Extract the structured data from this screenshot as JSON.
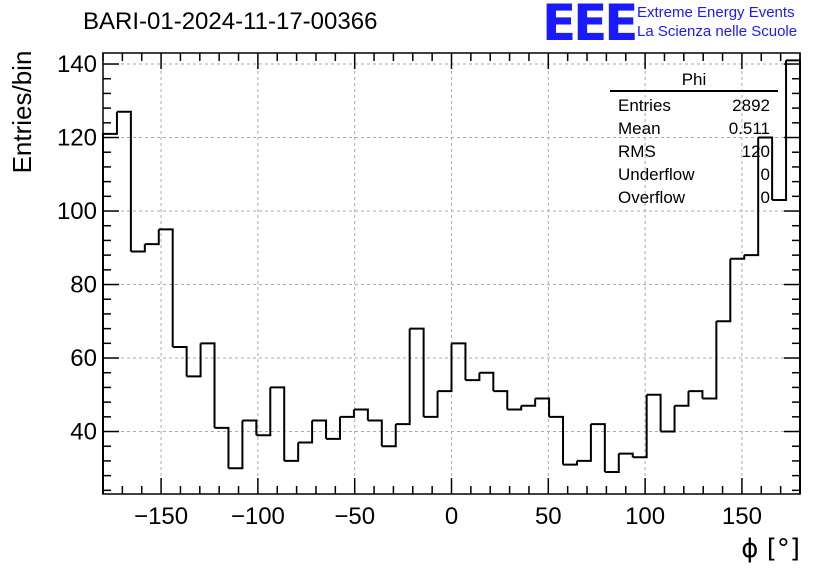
{
  "header": {
    "title": "BARI-01-2024-11-17-00366",
    "logo": "EEE",
    "logo_line1": "Extreme Energy Events",
    "logo_line2": "La Scienza nelle Scuole"
  },
  "stats": {
    "name": "Phi",
    "rows": [
      {
        "label": "Entries",
        "value": "2892"
      },
      {
        "label": "Mean",
        "value": "0.511"
      },
      {
        "label": "RMS",
        "value": "120"
      },
      {
        "label": "Underflow",
        "value": "0"
      },
      {
        "label": "Overflow",
        "value": "0"
      }
    ]
  },
  "chart_data": {
    "type": "bar",
    "subtype": "histogram",
    "title": "BARI-01-2024-11-17-00366",
    "xlabel": "ϕ [°]",
    "ylabel": "Entries/bin",
    "xlim": [
      -180,
      180
    ],
    "ylim": [
      23,
      143
    ],
    "bin_width": 7.2,
    "grid": true,
    "xticks": [
      -150,
      -100,
      -50,
      0,
      50,
      100,
      150
    ],
    "yticks": [
      40,
      60,
      80,
      100,
      120,
      140
    ],
    "values": [
      121,
      127,
      89,
      91,
      95,
      63,
      55,
      64,
      41,
      30,
      43,
      39,
      52,
      32,
      37,
      43,
      38,
      44,
      46,
      43,
      36,
      42,
      68,
      44,
      51,
      64,
      54,
      56,
      51,
      46,
      47,
      49,
      44,
      31,
      32,
      42,
      29,
      34,
      33,
      50,
      40,
      47,
      51,
      49,
      70,
      87,
      88,
      120,
      103,
      141
    ]
  }
}
